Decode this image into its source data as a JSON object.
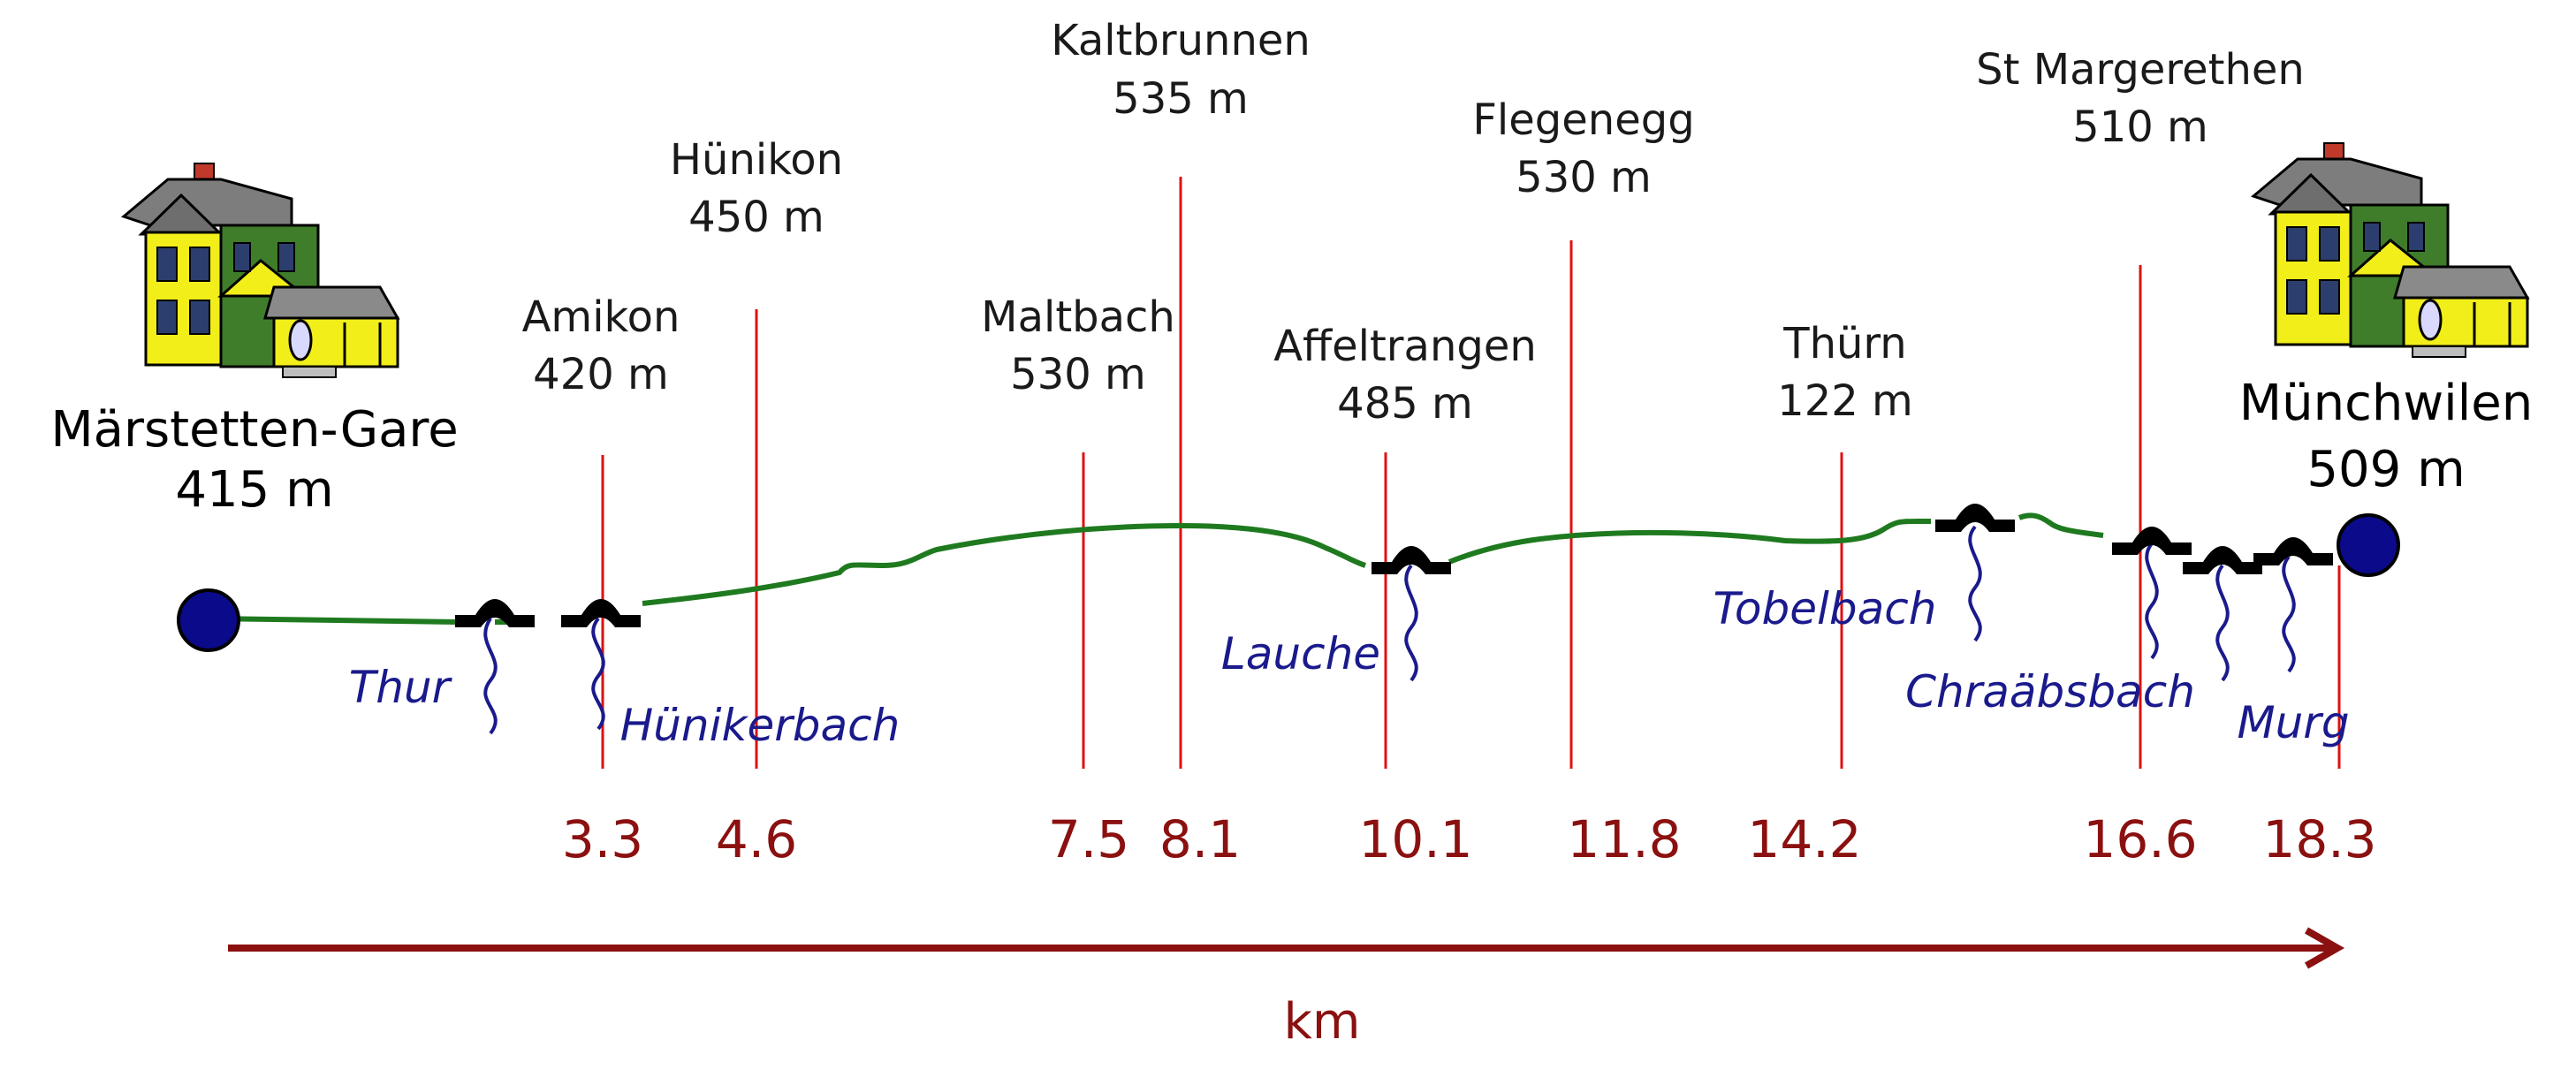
{
  "colors": {
    "route": "#1f7a1f",
    "marker": "#e01010",
    "river": "#1a1a8c",
    "km_text": "#8b1010",
    "axis": "#8b1010",
    "endpoint": "#0a0a8a",
    "bridge": "#000000"
  },
  "axis": {
    "label": "km",
    "direction": "left-to-right"
  },
  "start": {
    "name": "Märstetten-Gare",
    "elevation": "415 m",
    "icon": "house-icon"
  },
  "end": {
    "name": "Münchwilen",
    "elevation": "509 m",
    "icon": "house-icon"
  },
  "places": [
    {
      "name": "Amikon",
      "elevation": "420 m",
      "km": "3.3"
    },
    {
      "name": "Hünikon",
      "elevation": "450 m",
      "km": "4.6"
    },
    {
      "name": "Maltbach",
      "elevation": "530 m",
      "km": "7.5"
    },
    {
      "name": "Kaltbrunnen",
      "elevation": "535 m",
      "km": "8.1"
    },
    {
      "name": "Affeltrangen",
      "elevation": "485 m",
      "km": "10.1"
    },
    {
      "name": "Flegenegg",
      "elevation": "530 m",
      "km": "11.8"
    },
    {
      "name": "Thürn",
      "elevation": "122 m",
      "km": "14.2"
    },
    {
      "name": "St Margerethen",
      "elevation": "510 m",
      "km": "16.6"
    },
    {
      "name": "",
      "elevation": "",
      "km": "18.3"
    }
  ],
  "rivers": [
    "Thur",
    "Hünikerbach",
    "Lauche",
    "Tobelbach",
    "Chraäbsbach",
    "Murg"
  ]
}
